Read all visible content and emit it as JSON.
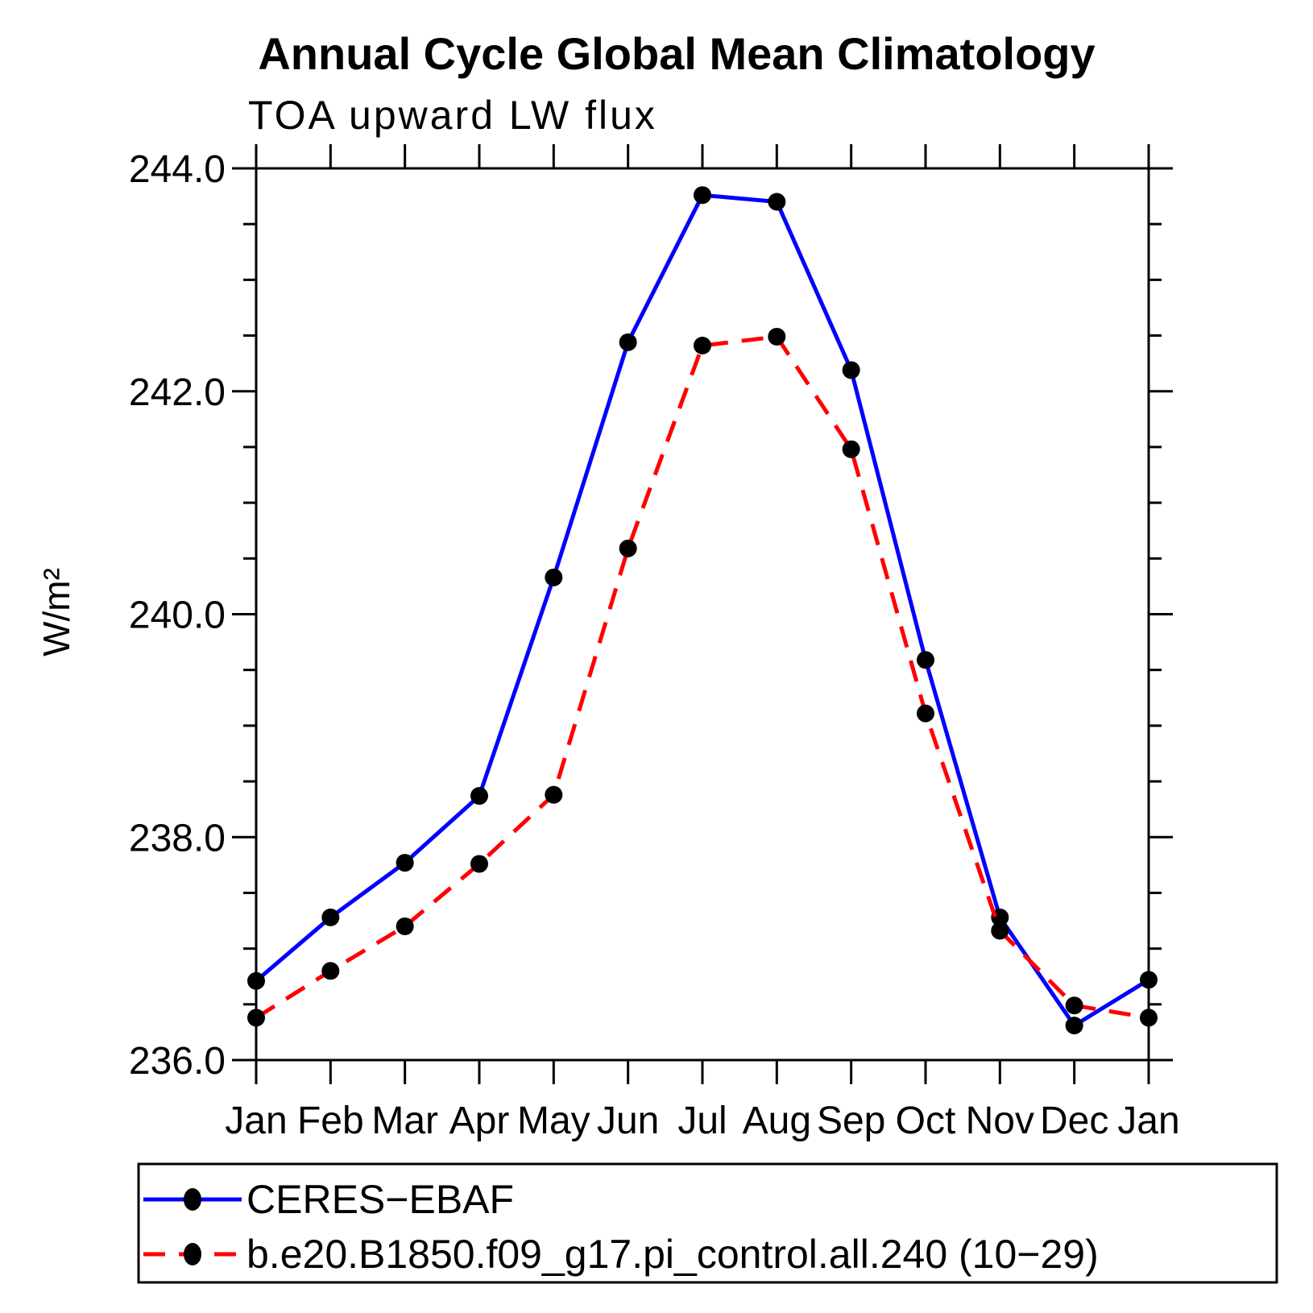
{
  "header": {
    "title": "Annual Cycle Global Mean Climatology",
    "subtitle": "TOA upward LW flux"
  },
  "axes": {
    "y": {
      "label": "W/m²",
      "min": 236.0,
      "max": 244.0,
      "major_tick_interval": 2.0,
      "minor_tick_interval": 0.5,
      "tick_labels": [
        "236.0",
        "238.0",
        "240.0",
        "242.0",
        "244.0"
      ]
    },
    "x": {
      "tick_labels": [
        "Jan",
        "Feb",
        "Mar",
        "Apr",
        "May",
        "Jun",
        "Jul",
        "Aug",
        "Sep",
        "Oct",
        "Nov",
        "Dec",
        "Jan"
      ]
    }
  },
  "legend": {
    "entries": [
      {
        "label": "CERES−EBAF",
        "color": "#0000ff",
        "line_style": "solid",
        "marker": "filled-circle"
      },
      {
        "label": "b.e20.B1850.f09_g17.pi_control.all.240 (10−29)",
        "color": "#ff0000",
        "line_style": "dashed",
        "marker": "filled-circle"
      }
    ]
  },
  "colors": {
    "observation_line": "#0000ff",
    "model_line": "#ff0000",
    "marker": "#000000",
    "axis": "#000000"
  },
  "chart_data": {
    "type": "line",
    "title": "Annual Cycle Global Mean Climatology",
    "subtitle": "TOA upward LW flux",
    "xlabel": "",
    "ylabel": "W/m²",
    "ylim": [
      236.0,
      244.0
    ],
    "ytick_interval": 2.0,
    "minor_tick_interval": 0.5,
    "grid": false,
    "legend_position": "bottom",
    "categories": [
      "Jan",
      "Feb",
      "Mar",
      "Apr",
      "May",
      "Jun",
      "Jul",
      "Aug",
      "Sep",
      "Oct",
      "Nov",
      "Dec",
      "Jan"
    ],
    "series": [
      {
        "name": "CERES−EBAF",
        "color": "#0000ff",
        "line_style": "solid",
        "marker": "filled-circle",
        "marker_color": "#000000",
        "values": [
          236.71,
          237.28,
          237.77,
          238.37,
          240.33,
          242.44,
          243.76,
          243.7,
          242.19,
          239.59,
          237.28,
          236.31,
          236.72
        ]
      },
      {
        "name": "b.e20.B1850.f09_g17.pi_control.all.240 (10−29)",
        "color": "#ff0000",
        "line_style": "dashed",
        "marker": "filled-circle",
        "marker_color": "#000000",
        "values": [
          236.38,
          236.8,
          237.2,
          237.76,
          238.38,
          240.59,
          242.41,
          242.49,
          241.48,
          239.11,
          237.16,
          236.49,
          236.38
        ]
      }
    ]
  }
}
